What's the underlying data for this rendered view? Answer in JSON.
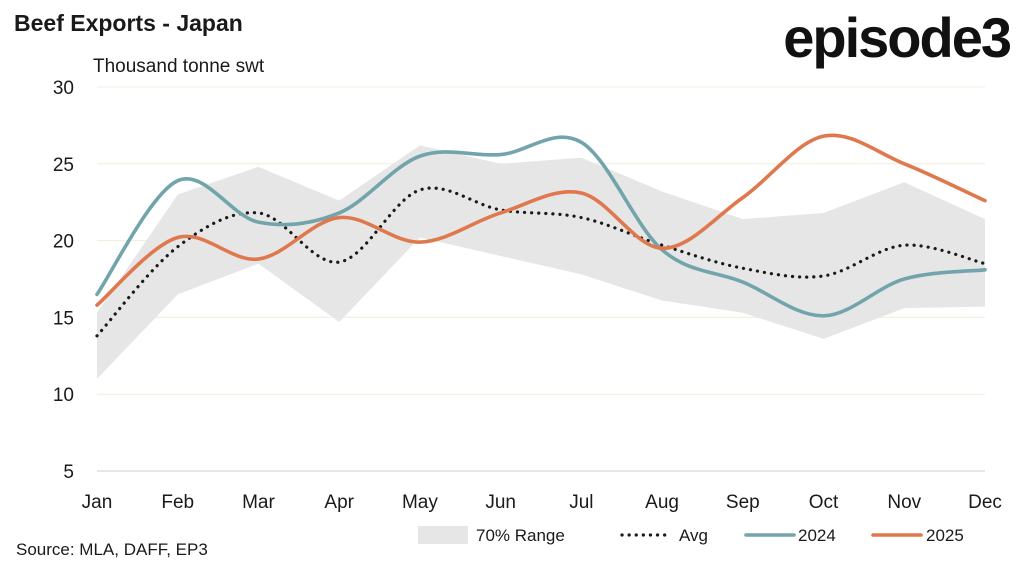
{
  "header": {
    "title": "Beef Exports - Japan",
    "brand": "episode3"
  },
  "footer": {
    "source": "Source: MLA, DAFF, EP3"
  },
  "colors": {
    "range": "#e6e6e6",
    "avg": "#1a1a1a",
    "s2024": "#72a4ab",
    "s2025": "#e0784d",
    "grid": "#f1ecdc",
    "axis": "#cfcfcf"
  },
  "chart_data": {
    "type": "line",
    "title": "Beef Exports - Japan",
    "ylabel": "Thousand tonne swt",
    "xlabel": "",
    "ylim": [
      5,
      30
    ],
    "yticks": [
      5,
      10,
      15,
      20,
      25,
      30
    ],
    "grid": true,
    "legend_placement": "bottom-right",
    "categories": [
      "Jan",
      "Feb",
      "Mar",
      "Apr",
      "May",
      "Jun",
      "Jul",
      "Aug",
      "Sep",
      "Oct",
      "Nov",
      "Dec"
    ],
    "range": {
      "name": "70% Range",
      "upper": [
        15.3,
        23.0,
        24.8,
        22.6,
        26.2,
        25.0,
        25.4,
        23.2,
        21.4,
        21.8,
        23.8,
        21.4
      ],
      "lower": [
        11.0,
        16.5,
        18.5,
        14.7,
        20.2,
        19.0,
        17.8,
        16.1,
        15.3,
        13.6,
        15.6,
        15.7
      ]
    },
    "series": [
      {
        "name": "Avg",
        "values": [
          13.8,
          19.6,
          21.8,
          18.6,
          23.3,
          22.0,
          21.5,
          19.7,
          18.2,
          17.7,
          19.7,
          18.5
        ]
      },
      {
        "name": "2024",
        "values": [
          16.5,
          23.9,
          21.2,
          21.8,
          25.5,
          25.6,
          26.4,
          19.4,
          17.3,
          15.1,
          17.5,
          18.1
        ]
      },
      {
        "name": "2025",
        "values": [
          15.8,
          20.2,
          18.8,
          21.5,
          19.9,
          21.8,
          23.1,
          19.5,
          22.8,
          26.8,
          25.0,
          22.6
        ]
      }
    ]
  }
}
